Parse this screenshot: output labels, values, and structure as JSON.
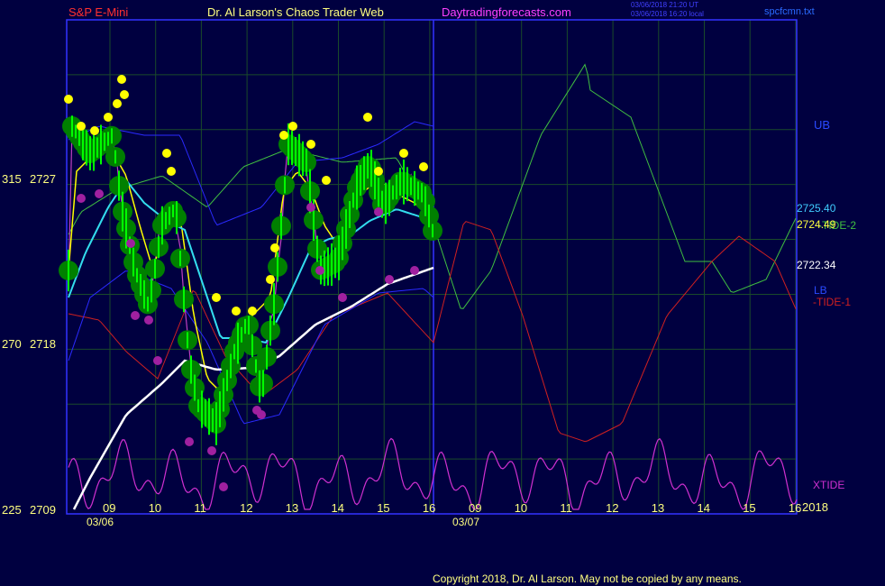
{
  "header": {
    "symbol": "S&P E-Mini",
    "title": "Dr. Al Larson's Chaos Trader Web",
    "site": "Daytradingforecasts.com",
    "stamp1": "03/06/2018 21:20 UT",
    "stamp2": "03/06/2018 16:20 local",
    "file": "spcfcmn.txt"
  },
  "footer": {
    "copyright": "Copyright 2018, Dr. Al Larson. May not be copied by any means."
  },
  "colors": {
    "background": "#000040",
    "grid": "#1a4a2a",
    "frame": "#3333ff",
    "ub": "#2a2aff",
    "lb": "#2a2aff",
    "tide1": "#d02020",
    "tide2": "#40c040",
    "xtide": "#d030d0",
    "ma_short": "#ffff00",
    "ma_mid": "#33ddee",
    "ma_long": "#ffffff",
    "bars": "#00ff00",
    "balls": "#008000",
    "highs": "#ffff00",
    "lows": "#a020a0"
  },
  "chart_data": {
    "type": "line",
    "title": "S&P E-Mini",
    "y_axis": {
      "ticks": [
        {
          "left": "315",
          "right": "2727",
          "value": 2727
        },
        {
          "left": "270",
          "right": "2718",
          "value": 2718
        },
        {
          "left": "225",
          "right": "2709",
          "value": 2709
        }
      ]
    },
    "x_axis": {
      "hour_labels": [
        "09",
        "10",
        "11",
        "12",
        "13",
        "14",
        "15",
        "16",
        "09",
        "10",
        "11",
        "12",
        "13",
        "14",
        "15",
        "16"
      ],
      "date_labels": [
        "03/06",
        "03/07"
      ],
      "year": "2018"
    },
    "right_labels": {
      "ub": "UB",
      "ma_mid_value": "2725.40",
      "ma_short_value": "2724.49",
      "tide2": "-TIDE-2",
      "ma_long_value": "2722.34",
      "lb": "LB",
      "tide1": "-TIDE-1",
      "xtide": "XTIDE"
    },
    "series_values": {
      "last_close": 2724.49,
      "mid_ma_last": 2725.4,
      "long_ma_last": 2722.34
    }
  }
}
